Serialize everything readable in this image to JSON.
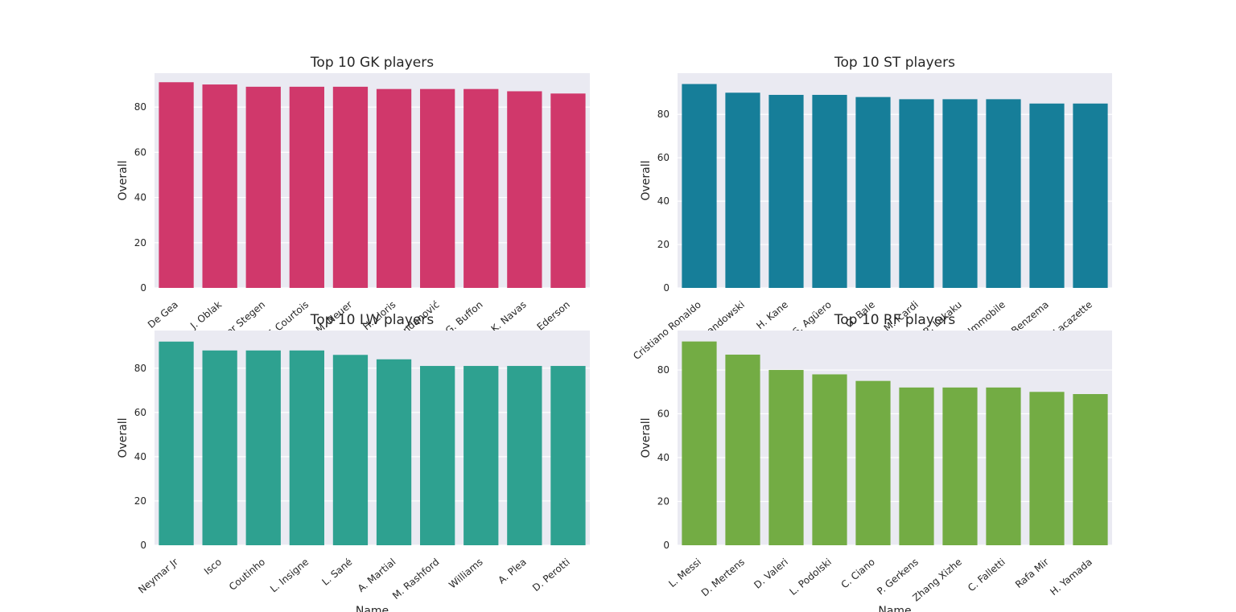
{
  "chart_data": [
    {
      "type": "bar",
      "title": "Top 10 GK players",
      "xlabel": "",
      "ylabel": "Overall",
      "categories": [
        "De Gea",
        "J. Oblak",
        "M. ter Stegen",
        "T. Courtois",
        "M. Neuer",
        "H. Lloris",
        "S. Handanović",
        "G. Buffon",
        "K. Navas",
        "Ederson"
      ],
      "values": [
        91,
        90,
        89,
        89,
        89,
        88,
        88,
        88,
        87,
        86
      ],
      "ylim": [
        0,
        95
      ],
      "yticks": [
        0,
        20,
        40,
        60,
        80
      ],
      "color": "#d0386b",
      "grid": true
    },
    {
      "type": "bar",
      "title": "Top 10 ST players",
      "xlabel": "",
      "ylabel": "Overall",
      "categories": [
        "Cristiano Ronaldo",
        "R. Lewandowski",
        "H. Kane",
        "S. Agüero",
        "G. Bale",
        "M. Icardi",
        "R. Lukaku",
        "C. Immobile",
        "K. Benzema",
        "A. Lacazette"
      ],
      "values": [
        94,
        90,
        89,
        89,
        88,
        87,
        87,
        87,
        85,
        85
      ],
      "ylim": [
        0,
        99
      ],
      "yticks": [
        0,
        20,
        40,
        60,
        80
      ],
      "color": "#167e99",
      "grid": true
    },
    {
      "type": "bar",
      "title": "Top 10 LW players",
      "xlabel": "Name",
      "ylabel": "Overall",
      "categories": [
        "Neymar Jr",
        "Isco",
        "Coutinho",
        "L. Insigne",
        "L. Sané",
        "A. Martial",
        "M. Rashford",
        "Williams",
        "A. Plea",
        "D. Perotti"
      ],
      "values": [
        92,
        88,
        88,
        88,
        86,
        84,
        81,
        81,
        81,
        81
      ],
      "ylim": [
        0,
        97
      ],
      "yticks": [
        0,
        20,
        40,
        60,
        80
      ],
      "color": "#2ea190",
      "grid": true
    },
    {
      "type": "bar",
      "title": "Top 10 RF players",
      "xlabel": "Name",
      "ylabel": "Overall",
      "categories": [
        "L. Messi",
        "D. Mertens",
        "D. Valeri",
        "L. Podolski",
        "C. Ciano",
        "P. Gerkens",
        "Zhang Xizhe",
        "C. Falletti",
        "Rafa Mir",
        "H. Yamada"
      ],
      "values": [
        93,
        87,
        80,
        78,
        75,
        72,
        72,
        72,
        70,
        69
      ],
      "ylim": [
        0,
        98
      ],
      "yticks": [
        0,
        20,
        40,
        60,
        80
      ],
      "color": "#73ac44",
      "grid": true
    }
  ]
}
